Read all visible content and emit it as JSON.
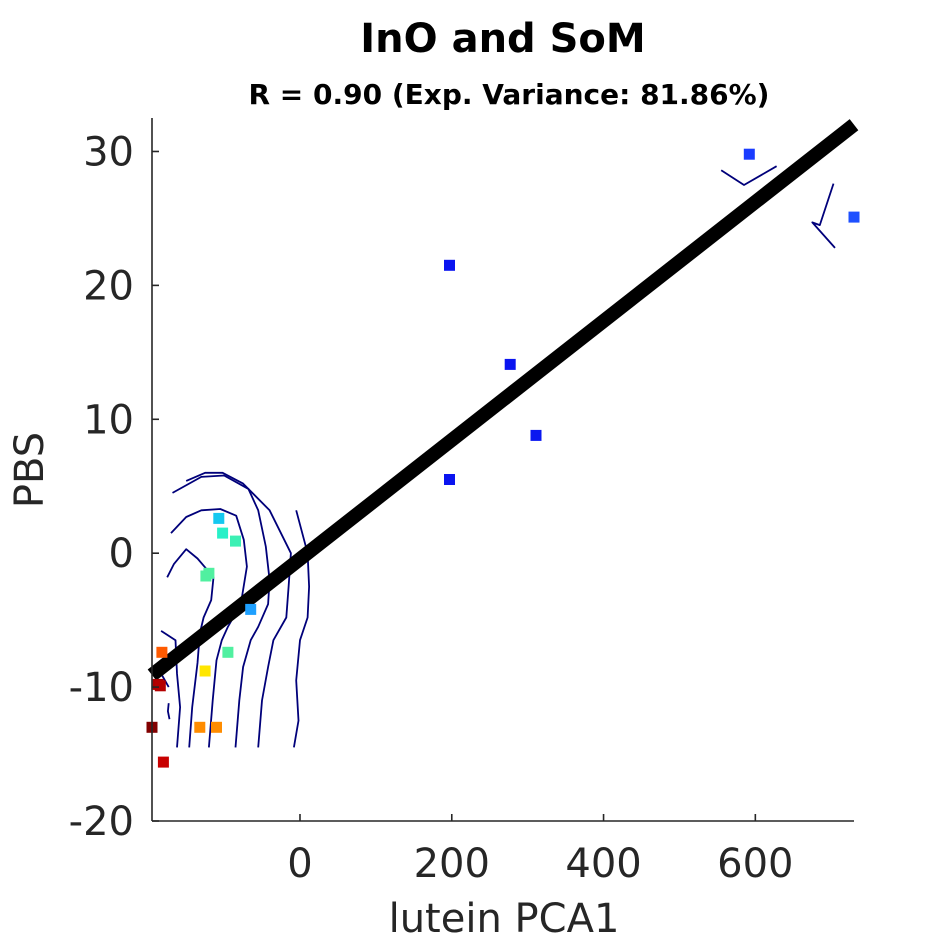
{
  "chart_data": {
    "type": "scatter",
    "title": "InO and SoM",
    "subtitle": "R = 0.90 (Exp. Variance: 81.86%)",
    "xlabel": "lutein PCA1",
    "ylabel": "PBS",
    "xlim": [
      -195,
      730
    ],
    "ylim": [
      -20,
      32.5
    ],
    "xticks": [
      0,
      200,
      400,
      600
    ],
    "yticks": [
      -20,
      -10,
      0,
      10,
      20,
      30
    ],
    "grid": false,
    "points": [
      {
        "x": 592,
        "y": 29.8,
        "color": "#1a3cff"
      },
      {
        "x": 730,
        "y": 25.1,
        "color": "#1e50ff"
      },
      {
        "x": 197,
        "y": 21.5,
        "color": "#0a14f0"
      },
      {
        "x": 277,
        "y": 14.1,
        "color": "#0a14f0"
      },
      {
        "x": 311,
        "y": 8.8,
        "color": "#0a18f0"
      },
      {
        "x": 197,
        "y": 5.5,
        "color": "#0a14f0"
      },
      {
        "x": -107,
        "y": 2.6,
        "color": "#14c8f0"
      },
      {
        "x": -102,
        "y": 1.5,
        "color": "#28f0c8"
      },
      {
        "x": -85,
        "y": 0.9,
        "color": "#3cf0b4"
      },
      {
        "x": -120,
        "y": -1.5,
        "color": "#50f0a0"
      },
      {
        "x": -124,
        "y": -1.7,
        "color": "#50f0a0"
      },
      {
        "x": -65,
        "y": -4.2,
        "color": "#1ea0ff"
      },
      {
        "x": -95,
        "y": -7.4,
        "color": "#50f0a0"
      },
      {
        "x": -182,
        "y": -7.4,
        "color": "#ff5a00"
      },
      {
        "x": -125,
        "y": -8.8,
        "color": "#ffe600"
      },
      {
        "x": -187,
        "y": -9.8,
        "color": "#aa0000"
      },
      {
        "x": -184,
        "y": -9.9,
        "color": "#b40000"
      },
      {
        "x": -132,
        "y": -13.0,
        "color": "#ff8c00"
      },
      {
        "x": -110,
        "y": -13.0,
        "color": "#ff8c00"
      },
      {
        "x": -195,
        "y": -13.0,
        "color": "#820000"
      },
      {
        "x": -180,
        "y": -15.6,
        "color": "#c80000"
      }
    ],
    "regression": {
      "x": [
        -195,
        730
      ],
      "y": [
        -9.1,
        32.0
      ],
      "color": "#000000"
    },
    "contours": [
      [
        [
          -173,
          -10
        ],
        [
          -185,
          -8.8
        ],
        [
          -192,
          -10
        ]
      ],
      [
        [
          -172,
          -12.4
        ],
        [
          -174,
          -11.8
        ],
        [
          -173,
          -11.2
        ]
      ],
      [
        [
          -183,
          -5.8
        ],
        [
          -164,
          -6.5
        ],
        [
          -162,
          -9
        ],
        [
          -158,
          -11.5
        ],
        [
          -162,
          -14.5
        ]
      ],
      [
        [
          -175,
          -1.8
        ],
        [
          -166,
          -0.8
        ],
        [
          -150,
          0.3
        ],
        [
          -135,
          -0.4
        ],
        [
          -126,
          -1
        ],
        [
          -114,
          -1.8
        ],
        [
          -117,
          -3.5
        ],
        [
          -127,
          -4.8
        ],
        [
          -132,
          -6
        ],
        [
          -135,
          -8.2
        ],
        [
          -142,
          -11.5
        ],
        [
          -146,
          -14.5
        ]
      ],
      [
        [
          -170,
          1.5
        ],
        [
          -150,
          2.7
        ],
        [
          -130,
          3.2
        ],
        [
          -105,
          3.3
        ],
        [
          -84,
          2.8
        ],
        [
          -74,
          1
        ],
        [
          -70,
          -1
        ],
        [
          -78,
          -3.8
        ],
        [
          -95,
          -5.5
        ],
        [
          -103,
          -6.5
        ],
        [
          -110,
          -8
        ],
        [
          -115,
          -11
        ],
        [
          -120,
          -14.5
        ]
      ],
      [
        [
          -168,
          4.5
        ],
        [
          -130,
          5.7
        ],
        [
          -100,
          5.8
        ],
        [
          -68,
          4.8
        ],
        [
          -55,
          3.2
        ],
        [
          -45,
          0.5
        ],
        [
          -40,
          -2
        ],
        [
          -42,
          -3.8
        ],
        [
          -55,
          -5.5
        ],
        [
          -65,
          -6.5
        ],
        [
          -75,
          -8.5
        ],
        [
          -80,
          -11
        ],
        [
          -85,
          -14.5
        ]
      ],
      [
        [
          -150,
          5.4
        ],
        [
          -125,
          6
        ],
        [
          -102,
          6
        ],
        [
          -75,
          5.2
        ],
        [
          -40,
          3.2
        ],
        [
          -12,
          0
        ],
        [
          -15,
          -2.5
        ],
        [
          -18,
          -4.8
        ],
        [
          -35,
          -6.5
        ],
        [
          -42,
          -8.5
        ],
        [
          -50,
          -11
        ],
        [
          -55,
          -14.5
        ]
      ],
      [
        [
          -5,
          3.2
        ],
        [
          10,
          0
        ],
        [
          12,
          -2.5
        ],
        [
          10,
          -4.8
        ],
        [
          0,
          -6.5
        ],
        [
          -5,
          -9.5
        ],
        [
          -2,
          -12.5
        ],
        [
          -8,
          -14.5
        ]
      ],
      [
        [
          555,
          28.6
        ],
        [
          585,
          27.5
        ],
        [
          628,
          28.9
        ]
      ],
      [
        [
          703,
          27.6
        ],
        [
          685,
          24.5
        ],
        [
          675,
          24.7
        ],
        [
          705,
          22.8
        ]
      ]
    ]
  }
}
